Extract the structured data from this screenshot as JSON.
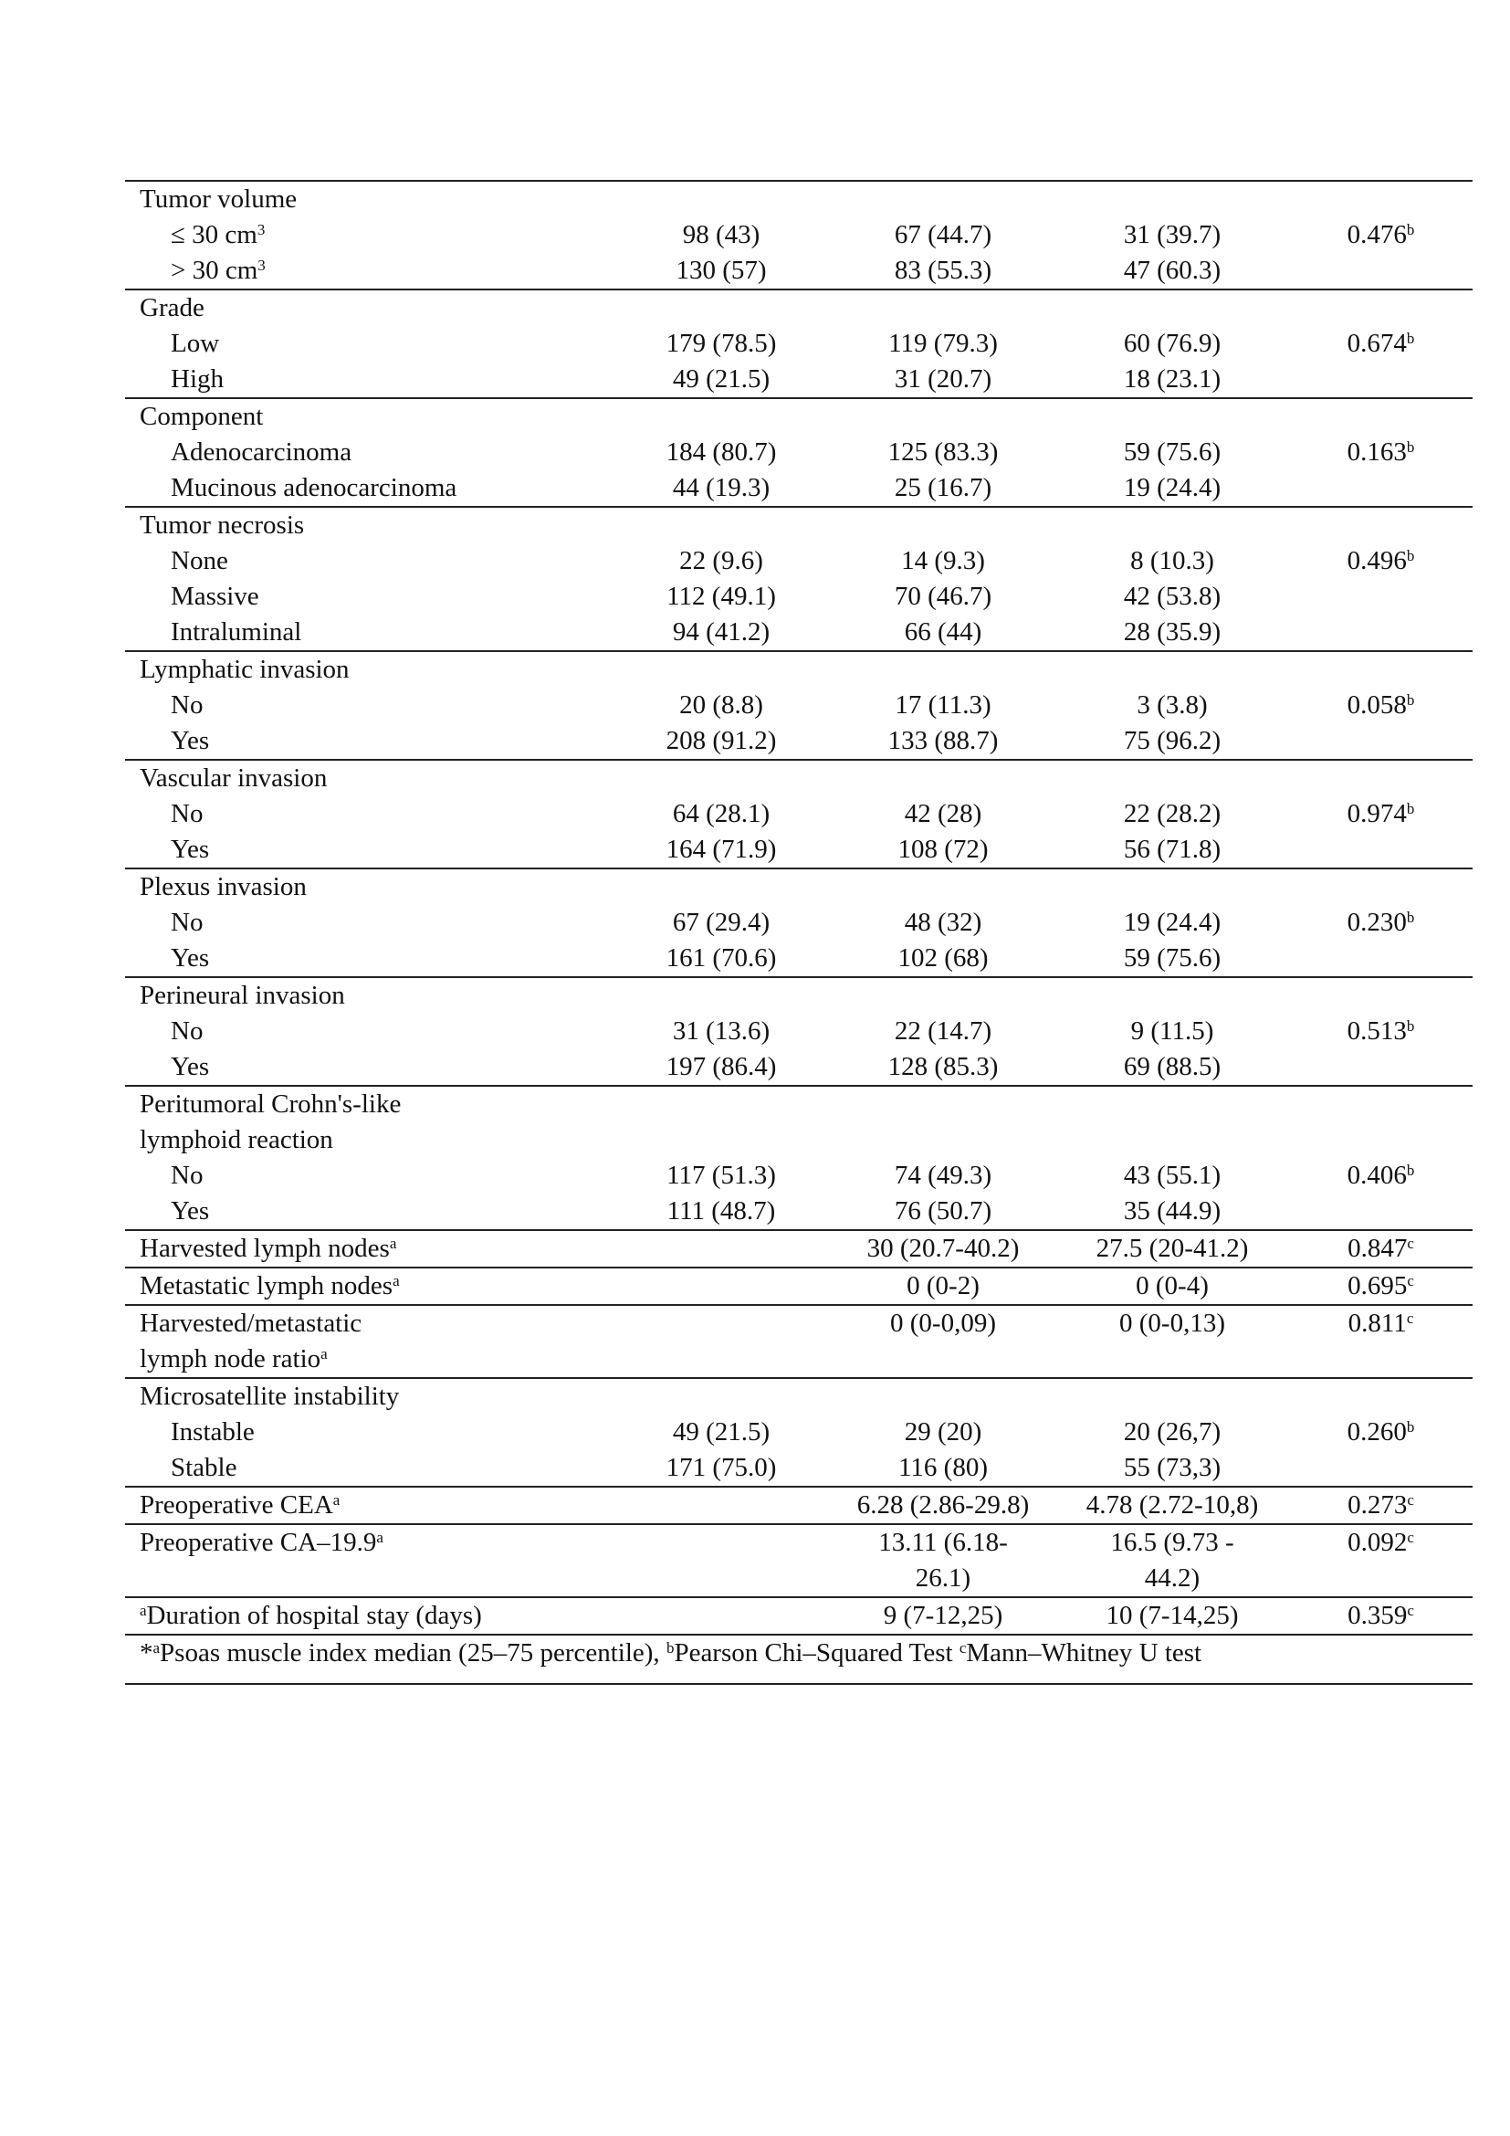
{
  "groups": [
    {
      "rows": [
        {
          "label": "Tumor volume"
        },
        {
          "label": "≤ 30 cm",
          "label_sup": "3",
          "indent": true,
          "c1": "98 (43)",
          "c2": "67 (44.7)",
          "c3": "31 (39.7)",
          "p": "0.476",
          "p_sup": "b"
        },
        {
          "label": "> 30 cm",
          "label_sup": "3",
          "indent": true,
          "c1": "130 (57)",
          "c2": "83 (55.3)",
          "c3": "47 (60.3)"
        }
      ]
    },
    {
      "rows": [
        {
          "label": "Grade"
        },
        {
          "label": "Low",
          "indent": true,
          "c1": "179 (78.5)",
          "c2": "119 (79.3)",
          "c3": "60 (76.9)",
          "p": "0.674",
          "p_sup": "b"
        },
        {
          "label": "High",
          "indent": true,
          "c1": "49 (21.5)",
          "c2": "31 (20.7)",
          "c3": "18 (23.1)"
        }
      ]
    },
    {
      "rows": [
        {
          "label": "Component"
        },
        {
          "label": "Adenocarcinoma",
          "indent": true,
          "c1": "184 (80.7)",
          "c2": "125 (83.3)",
          "c3": "59 (75.6)",
          "p": "0.163",
          "p_sup": "b"
        },
        {
          "label": "Mucinous adenocarcinoma",
          "indent": true,
          "c1": "44 (19.3)",
          "c2": "25 (16.7)",
          "c3": "19 (24.4)"
        }
      ]
    },
    {
      "rows": [
        {
          "label": "Tumor necrosis"
        },
        {
          "label": "None",
          "indent": true,
          "c1": "22 (9.6)",
          "c2": "14 (9.3)",
          "c3": "8 (10.3)",
          "p": "0.496",
          "p_sup": "b"
        },
        {
          "label": "Massive",
          "indent": true,
          "c1": "112 (49.1)",
          "c2": "70 (46.7)",
          "c3": "42 (53.8)"
        },
        {
          "label": "Intraluminal",
          "indent": true,
          "c1": "94 (41.2)",
          "c2": "66 (44)",
          "c3": "28 (35.9)"
        }
      ]
    },
    {
      "rows": [
        {
          "label": "Lymphatic invasion"
        },
        {
          "label": "No",
          "indent": true,
          "c1": "20 (8.8)",
          "c2": "17 (11.3)",
          "c3": "3 (3.8)",
          "p": "0.058",
          "p_sup": "b"
        },
        {
          "label": "Yes",
          "indent": true,
          "c1": "208 (91.2)",
          "c2": "133 (88.7)",
          "c3": "75 (96.2)"
        }
      ]
    },
    {
      "rows": [
        {
          "label": "Vascular invasion"
        },
        {
          "label": "No",
          "indent": true,
          "c1": "64 (28.1)",
          "c2": "42 (28)",
          "c3": "22 (28.2)",
          "p": "0.974",
          "p_sup": "b"
        },
        {
          "label": "Yes",
          "indent": true,
          "c1": "164 (71.9)",
          "c2": "108 (72)",
          "c3": "56 (71.8)"
        }
      ]
    },
    {
      "rows": [
        {
          "label": "Plexus invasion"
        },
        {
          "label": "No",
          "indent": true,
          "c1": "67 (29.4)",
          "c2": "48 (32)",
          "c3": "19 (24.4)",
          "p": "0.230",
          "p_sup": "b"
        },
        {
          "label": "Yes",
          "indent": true,
          "c1": "161 (70.6)",
          "c2": "102 (68)",
          "c3": "59 (75.6)"
        }
      ]
    },
    {
      "rows": [
        {
          "label": "Perineural invasion"
        },
        {
          "label": "No",
          "indent": true,
          "c1": "31 (13.6)",
          "c2": "22 (14.7)",
          "c3": "9 (11.5)",
          "p": "0.513",
          "p_sup": "b"
        },
        {
          "label": "Yes",
          "indent": true,
          "c1": "197 (86.4)",
          "c2": "128 (85.3)",
          "c3": "69 (88.5)"
        }
      ]
    },
    {
      "rows": [
        {
          "label": "Peritumoral Crohn's-like\nlymphoid reaction"
        },
        {
          "label": "No",
          "indent": true,
          "c1": "117 (51.3)",
          "c2": "74 (49.3)",
          "c3": "43 (55.1)",
          "p": "0.406",
          "p_sup": "b"
        },
        {
          "label": "Yes",
          "indent": true,
          "c1": "111 (48.7)",
          "c2": "76 (50.7)",
          "c3": "35 (44.9)"
        }
      ]
    },
    {
      "rows": [
        {
          "label": "Harvested lymph nodes",
          "label_sup": "a",
          "c2": "30 (20.7-40.2)",
          "c3": "27.5 (20-41.2)",
          "p": "0.847",
          "p_sup": "c"
        }
      ]
    },
    {
      "rows": [
        {
          "label": "Metastatic lymph nodes",
          "label_sup": "a",
          "c2": "0 (0-2)",
          "c3": "0 (0-4)",
          "p": "0.695",
          "p_sup": "c"
        }
      ]
    },
    {
      "rows": [
        {
          "label": "Harvested/metastatic\nlymph node ratio",
          "label_sup": "a",
          "c2": "0 (0-0,09)",
          "c3": "0 (0-0,13)",
          "p": "0.811",
          "p_sup": "c"
        }
      ]
    },
    {
      "rows": [
        {
          "label": "Microsatellite instability"
        },
        {
          "label": "Instable",
          "indent": true,
          "c1": "49 (21.5)",
          "c2": "29 (20)",
          "c3": "20 (26,7)",
          "p": "0.260",
          "p_sup": "b"
        },
        {
          "label": "Stable",
          "indent": true,
          "c1": "171 (75.0)",
          "c2": "116 (80)",
          "c3": "55 (73,3)"
        }
      ]
    },
    {
      "rows": [
        {
          "label": "Preoperative CEA",
          "label_sup": "a",
          "c2": "6.28 (2.86-29.8)",
          "c3": "4.78 (2.72-10,8)",
          "p": "0.273",
          "p_sup": "c"
        }
      ]
    },
    {
      "rows": [
        {
          "label": "Preoperative CA–19.9",
          "label_sup": "a",
          "c2": "13.11 (6.18-\n26.1)",
          "c3": "16.5 (9.73 -\n44.2)",
          "p": "0.092",
          "p_sup": "c"
        }
      ]
    },
    {
      "rows": [
        {
          "label_pre_sup": "a",
          "label": "Duration of hospital stay (days)",
          "c2": "9 (7-12,25)",
          "c3": "10 (7-14,25)",
          "p": "0.359",
          "p_sup": "c"
        }
      ]
    }
  ],
  "footnote": {
    "prefix": "*",
    "sup_a": "a",
    "text_a": "Psoas muscle index median (25–75 percentile), ",
    "sup_b": "b",
    "text_b": "Pearson Chi–Squared Test  ",
    "sup_c": "c",
    "text_c": "Mann–Whitney U test"
  }
}
